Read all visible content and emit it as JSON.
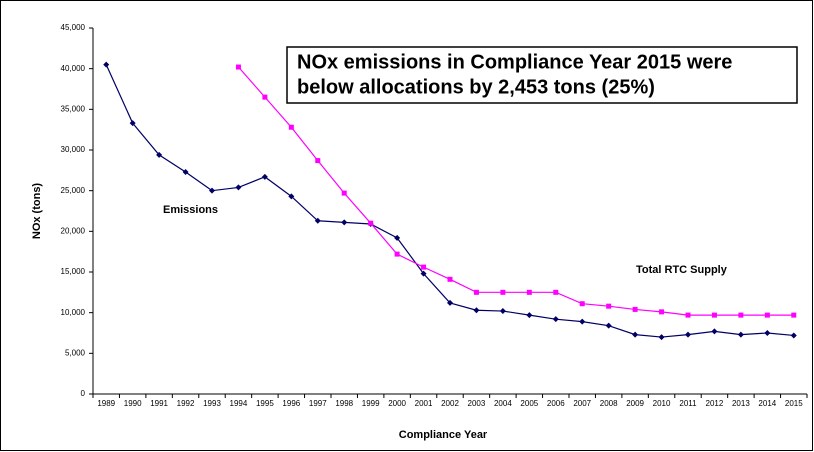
{
  "chart_data": {
    "type": "line",
    "annotation": [
      "NOx emissions in Compliance Year 2015 were",
      "below allocations by 2,453 tons (25%)"
    ],
    "x_label": "Compliance Year",
    "y_label": "NOx (tons)",
    "categories": [
      "1989",
      "1990",
      "1991",
      "1992",
      "1993",
      "1994",
      "1995",
      "1996",
      "1997",
      "1998",
      "1999",
      "2000",
      "2001",
      "2002",
      "2003",
      "2004",
      "2005",
      "2006",
      "2007",
      "2008",
      "2009",
      "2010",
      "2011",
      "2012",
      "2013",
      "2014",
      "2015"
    ],
    "series": [
      {
        "name": "Emissions",
        "color": "#000066",
        "marker": "diamond",
        "values": [
          40500,
          33300,
          29400,
          27300,
          25000,
          25400,
          26700,
          24300,
          21300,
          21100,
          20900,
          19200,
          14800,
          11200,
          10300,
          10200,
          9700,
          9200,
          8900,
          8400,
          7300,
          7000,
          7300,
          7700,
          7300,
          7500,
          7200
        ]
      },
      {
        "name": "Total RTC Supply",
        "color": "#ff00ff",
        "marker": "square",
        "values": [
          null,
          null,
          null,
          null,
          null,
          40200,
          36500,
          32800,
          28700,
          24700,
          21000,
          17200,
          15600,
          14100,
          12500,
          12500,
          12500,
          12500,
          11100,
          10800,
          10400,
          10100,
          9700,
          9700,
          9700,
          9700,
          9700
        ]
      }
    ],
    "ylim": [
      0,
      45000
    ],
    "yticks": [
      0,
      {
        "value": 5000,
        "label": "5,000"
      },
      {
        "value": 10000,
        "label": "10,000"
      },
      {
        "value": 15000,
        "label": "15,000"
      },
      {
        "value": 20000,
        "label": "20,000"
      },
      {
        "value": 25000,
        "label": "25,000"
      },
      {
        "value": 30000,
        "label": "30,000"
      },
      {
        "value": 35000,
        "label": "35,000"
      },
      {
        "value": 40000,
        "label": "40,000"
      },
      {
        "value": 45000,
        "label": "45,000"
      }
    ],
    "grid": false
  }
}
